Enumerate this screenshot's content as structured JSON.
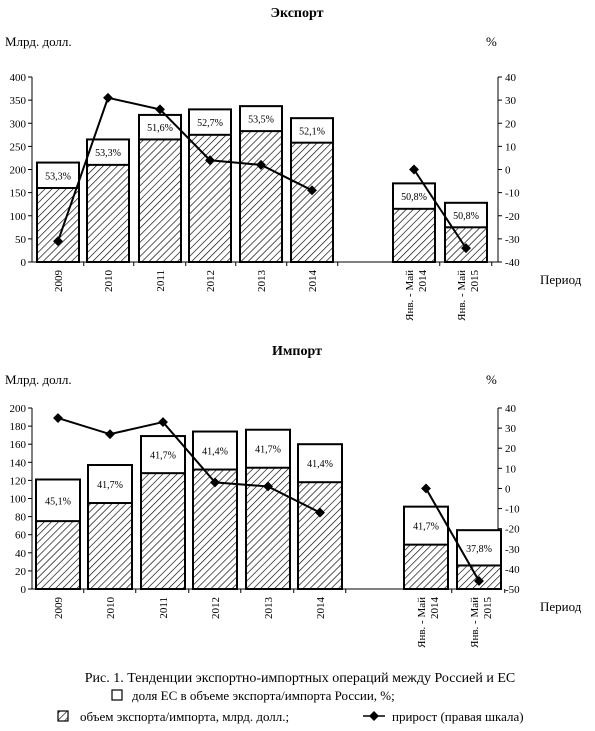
{
  "chart_data": [
    {
      "type": "bar",
      "title": "Экспорт",
      "ylabel_left": "Млрд. долл.",
      "ylabel_right": "%",
      "xlabel": "Период",
      "categories": [
        "2009",
        "2010",
        "2011",
        "2012",
        "2013",
        "2014",
        "Янв. - Май 2014",
        "Янв. - Май 2015"
      ],
      "ylim_left": [
        0,
        400
      ],
      "yticks_left": [
        0,
        50,
        100,
        150,
        200,
        250,
        300,
        350,
        400
      ],
      "ylim_right": [
        -40,
        40
      ],
      "yticks_right": [
        -40,
        -30,
        -20,
        -10,
        0,
        10,
        20,
        30,
        40
      ],
      "series": [
        {
          "name": "объем экспорта/импорта, млрд. долл.",
          "values": [
            215,
            265,
            318,
            330,
            337,
            311,
            170,
            128
          ]
        },
        {
          "name": "доля ЕС в объеме экспорта/импорта России, %",
          "values": [
            160,
            210,
            265,
            275,
            283,
            258,
            115,
            75
          ],
          "labels": [
            "53,3%",
            "53,3%",
            "51,6%",
            "52,7%",
            "53,5%",
            "52,1%",
            "50,8%",
            "50,8%"
          ]
        },
        {
          "name": "прирост (правая шкала)",
          "axis": "right",
          "values": [
            -31,
            31,
            26,
            4,
            2,
            -9,
            0,
            -34
          ]
        }
      ]
    },
    {
      "type": "bar",
      "title": "Импорт",
      "ylabel_left": "Млрд. долл.",
      "ylabel_right": "%",
      "xlabel": "Период",
      "categories": [
        "2009",
        "2010",
        "2011",
        "2012",
        "2013",
        "2014",
        "Янв. - Май 2014",
        "Янв. - Май 2015"
      ],
      "ylim_left": [
        0,
        200
      ],
      "yticks_left": [
        0,
        20,
        40,
        60,
        80,
        100,
        120,
        140,
        160,
        180,
        200
      ],
      "ylim_right": [
        -50,
        40
      ],
      "yticks_right": [
        -50,
        -40,
        -30,
        -20,
        -10,
        0,
        10,
        20,
        30,
        40
      ],
      "series": [
        {
          "name": "объем экспорта/импорта, млрд. долл.",
          "values": [
            121,
            137,
            169,
            174,
            176,
            160,
            91,
            65
          ]
        },
        {
          "name": "доля ЕС в объеме экспорта/импорта России, %",
          "values": [
            75,
            95,
            128,
            132,
            134,
            118,
            49,
            26
          ],
          "labels": [
            "45,1%",
            "41,7%",
            "41,7%",
            "41,4%",
            "41,7%",
            "41,4%",
            "41,7%",
            "37,8%"
          ]
        },
        {
          "name": "прирост (правая шкала)",
          "axis": "right",
          "values": [
            35,
            27,
            33,
            3,
            1,
            -12,
            0,
            -46
          ]
        }
      ]
    }
  ],
  "caption": "Рис. 1. Тенденции экспортно-импортных операций между Россией и ЕС",
  "legend": {
    "share": "доля ЕС в объеме экспорта/импорта России, %;",
    "volume": "объем экспорта/импорта, млрд. долл.;",
    "growth": "прирост (правая шкала)"
  }
}
